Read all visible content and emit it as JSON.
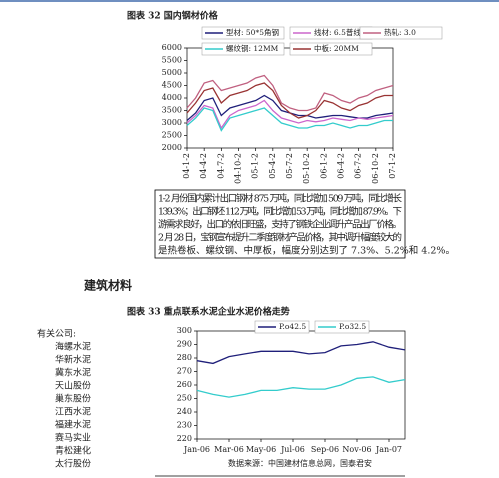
{
  "chart_data": [
    {
      "type": "line",
      "title": "图表 32   国内钢材价格",
      "categories": [
        "04-1-2",
        null,
        "04-4-2",
        null,
        "04-7-2",
        null,
        "04-10-2",
        null,
        "05-1-2",
        null,
        "05-4-2",
        null,
        "05-7-2",
        null,
        "05-10-2",
        null,
        "06-1-2",
        null,
        "06-4-2",
        null,
        "06-7-2",
        null,
        "06-10-2",
        null,
        "07-1-2"
      ],
      "series": [
        {
          "name": "型材: 50*5角钢",
          "color": "#1f1f7a",
          "values": [
            3100,
            3400,
            3900,
            4000,
            3300,
            3600,
            3700,
            3800,
            3900,
            4100,
            3900,
            3500,
            3400,
            3300,
            3300,
            3200,
            3250,
            3300,
            3300,
            3250,
            3200,
            3200,
            3300,
            3350,
            3400
          ]
        },
        {
          "name": "线材: 6.5普线",
          "color": "#cc66cc",
          "values": [
            3000,
            3300,
            3700,
            3600,
            2800,
            3300,
            3500,
            3600,
            3700,
            3900,
            3500,
            3200,
            3100,
            3000,
            3100,
            3050,
            3100,
            3200,
            3150,
            3100,
            3200,
            3150,
            3200,
            3250,
            3300
          ]
        },
        {
          "name": "热轧: 3.0",
          "color": "#c06080",
          "values": [
            3600,
            4000,
            4600,
            4700,
            4300,
            4400,
            4500,
            4600,
            4800,
            4900,
            4500,
            3800,
            3600,
            3500,
            3500,
            3600,
            4200,
            4100,
            3900,
            3800,
            4000,
            4100,
            4300,
            4400,
            4500
          ]
        },
        {
          "name": "螺纹钢: 12MM",
          "color": "#33cccc",
          "values": [
            2900,
            3200,
            3600,
            3500,
            2700,
            3200,
            3300,
            3400,
            3500,
            3600,
            3300,
            3000,
            2900,
            2800,
            2800,
            2900,
            2900,
            3000,
            2900,
            2800,
            2900,
            2900,
            3000,
            3100,
            3100
          ]
        },
        {
          "name": "中板: 20MM",
          "color": "#993333",
          "values": [
            3400,
            3800,
            4300,
            4400,
            3800,
            4100,
            4200,
            4300,
            4500,
            4600,
            4300,
            3700,
            3400,
            3200,
            3300,
            3500,
            3900,
            3800,
            3600,
            3500,
            3700,
            3800,
            4000,
            4100,
            4100
          ]
        }
      ],
      "ylim": [
        2000,
        6000
      ],
      "yticks": [
        2000,
        2500,
        3000,
        3500,
        4000,
        4500,
        5000,
        5500,
        6000
      ]
    },
    {
      "type": "line",
      "title": "图表 33   重点联系水泥企业水泥价格走势",
      "categories": [
        "Jan-06",
        null,
        "Mar-06",
        null,
        "May-06",
        null,
        "Jul-06",
        null,
        "Sep-06",
        null,
        "Nov-06",
        null,
        "Jan-07",
        null
      ],
      "series": [
        {
          "name": "P.o42.5",
          "color": "#1f1f7a",
          "values": [
            278,
            276,
            281,
            283,
            285,
            285,
            285,
            283,
            284,
            289,
            290,
            292,
            288,
            286
          ]
        },
        {
          "name": "P.o32.5",
          "color": "#33cccc",
          "values": [
            256,
            253,
            251,
            253,
            256,
            256,
            258,
            257,
            257,
            260,
            265,
            266,
            262,
            264
          ]
        }
      ],
      "ylim": [
        220,
        300
      ],
      "yticks": [
        220,
        230,
        240,
        250,
        260,
        270,
        280,
        290,
        300
      ],
      "source": "数据来源：中国建材信息总网，国泰君安"
    }
  ],
  "text_box": {
    "lines": [
      "1-2 月份国内累计出口钢材 875 万吨，同比增加 509 万吨，同比增长",
      "139.3%；出口钢坯 112 万吨，同比增加 53 万吨，同比增加 87.9%。下",
      "游需求良好，出口的依旧旺盛，支持了钢铁企业调升产品出厂价格。",
      "2 月 28 日，宝钢宣布提升二季度钢材产品价格，其中调升幅度较大的",
      "是热卷板、螺纹钢、中厚板，幅度分别达到了 7.3%、5.2%和 4.2%。"
    ]
  },
  "section_title": "建筑材料",
  "companies": {
    "label": "有关公司:",
    "items": [
      "海螺水泥",
      "华新水泥",
      "冀东水泥",
      "天山股份",
      "巢东股份",
      "江西水泥",
      "福建水泥",
      "赛马实业",
      "青松建化",
      "太行股份"
    ]
  }
}
